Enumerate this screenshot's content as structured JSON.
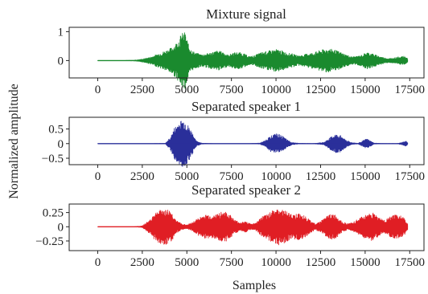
{
  "figure": {
    "ylabel": "Normalized amplitude",
    "xlabel": "Samples"
  },
  "chart_data": [
    {
      "type": "line",
      "title": "Mixture signal",
      "color": "#1a8a2e",
      "xlim": [
        -1600,
        18300
      ],
      "ylim": [
        -0.6,
        1.15
      ],
      "xticks": [
        0,
        2500,
        5000,
        7500,
        10000,
        12500,
        15000,
        17500
      ],
      "yticks": [
        0,
        1
      ],
      "ytick_labels": [
        "0",
        "1"
      ],
      "baseline": 0,
      "x": [
        0,
        1000,
        2000,
        2500,
        3000,
        3300,
        3600,
        3900,
        4200,
        4500,
        4700,
        4900,
        5100,
        5300,
        5500,
        5800,
        6100,
        6400,
        6700,
        7000,
        7300,
        7600,
        7900,
        8200,
        8500,
        8800,
        9100,
        9400,
        9700,
        10000,
        10300,
        10600,
        10900,
        11200,
        11500,
        11800,
        12100,
        12400,
        12700,
        13000,
        13300,
        13600,
        13900,
        14200,
        14500,
        14800,
        15100,
        15400,
        15700,
        16000,
        16300,
        16600,
        16900,
        17200,
        17400
      ],
      "envelope": [
        0.01,
        0.01,
        0.02,
        0.06,
        0.14,
        0.22,
        0.3,
        0.38,
        0.48,
        0.7,
        0.95,
        1.0,
        0.55,
        0.35,
        0.28,
        0.22,
        0.25,
        0.3,
        0.35,
        0.32,
        0.2,
        0.28,
        0.3,
        0.25,
        0.15,
        0.18,
        0.28,
        0.32,
        0.36,
        0.4,
        0.36,
        0.28,
        0.25,
        0.18,
        0.2,
        0.26,
        0.28,
        0.35,
        0.4,
        0.42,
        0.38,
        0.3,
        0.22,
        0.15,
        0.15,
        0.2,
        0.3,
        0.25,
        0.18,
        0.12,
        0.08,
        0.1,
        0.14,
        0.16,
        0.08
      ]
    },
    {
      "type": "line",
      "title": "Separated speaker 1",
      "color": "#2a2f9a",
      "xlim": [
        -1600,
        18300
      ],
      "ylim": [
        -0.72,
        0.9
      ],
      "xticks": [
        0,
        2500,
        5000,
        7500,
        10000,
        12500,
        15000,
        17500
      ],
      "yticks": [
        0.5,
        0,
        -0.5
      ],
      "ytick_labels": [
        "0.5",
        "0",
        "−0.5"
      ],
      "baseline": 0,
      "x": [
        0,
        1000,
        2000,
        3000,
        3800,
        4100,
        4300,
        4500,
        4700,
        4900,
        5100,
        5300,
        5500,
        5800,
        6500,
        7500,
        8500,
        9100,
        9400,
        9700,
        10000,
        10300,
        10600,
        10900,
        11300,
        12000,
        12700,
        13000,
        13300,
        13600,
        13900,
        14200,
        14600,
        14900,
        15100,
        15300,
        15500,
        16000,
        16800,
        17100,
        17300,
        17400
      ],
      "envelope": [
        0.005,
        0.005,
        0.005,
        0.008,
        0.02,
        0.25,
        0.55,
        0.7,
        0.82,
        0.8,
        0.6,
        0.4,
        0.12,
        0.03,
        0.008,
        0.008,
        0.01,
        0.03,
        0.12,
        0.28,
        0.35,
        0.3,
        0.15,
        0.05,
        0.02,
        0.01,
        0.05,
        0.2,
        0.32,
        0.3,
        0.15,
        0.05,
        0.02,
        0.12,
        0.18,
        0.1,
        0.03,
        0.01,
        0.01,
        0.06,
        0.1,
        0.02
      ]
    },
    {
      "type": "line",
      "title": "Separated speaker 2",
      "color": "#e01e24",
      "xlim": [
        -1600,
        18300
      ],
      "ylim": [
        -0.42,
        0.4
      ],
      "xticks": [
        0,
        2500,
        5000,
        7500,
        10000,
        12500,
        15000,
        17500
      ],
      "yticks": [
        0.25,
        0,
        -0.25
      ],
      "ytick_labels": [
        "0.25",
        "0",
        "−0.25"
      ],
      "baseline": 0,
      "x": [
        0,
        1000,
        2000,
        2500,
        2900,
        3200,
        3500,
        3800,
        4100,
        4400,
        4700,
        5000,
        5300,
        5600,
        5900,
        6200,
        6500,
        6800,
        7100,
        7400,
        7700,
        8000,
        8300,
        8600,
        8900,
        9200,
        9500,
        9800,
        10100,
        10400,
        10700,
        11000,
        11300,
        11600,
        11900,
        12200,
        12500,
        12800,
        13100,
        13400,
        13700,
        14000,
        14300,
        14600,
        14900,
        15200,
        15500,
        15800,
        16100,
        16400,
        16700,
        17000,
        17200,
        17400
      ],
      "envelope": [
        0.003,
        0.003,
        0.005,
        0.02,
        0.12,
        0.25,
        0.3,
        0.32,
        0.28,
        0.12,
        0.06,
        0.04,
        0.08,
        0.15,
        0.2,
        0.22,
        0.2,
        0.25,
        0.28,
        0.22,
        0.12,
        0.08,
        0.1,
        0.05,
        0.08,
        0.18,
        0.22,
        0.3,
        0.33,
        0.3,
        0.25,
        0.22,
        0.24,
        0.2,
        0.12,
        0.06,
        0.1,
        0.18,
        0.24,
        0.2,
        0.1,
        0.06,
        0.08,
        0.14,
        0.2,
        0.24,
        0.25,
        0.16,
        0.12,
        0.18,
        0.22,
        0.2,
        0.15,
        0.05
      ]
    }
  ]
}
